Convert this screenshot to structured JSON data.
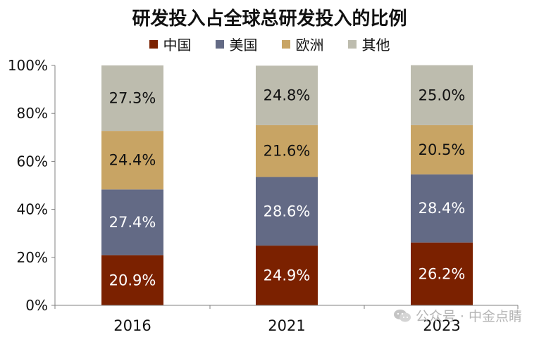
{
  "chart_data": {
    "type": "bar",
    "stacked": true,
    "title": "研发投入占全球总研发投入的比例",
    "categories": [
      "2016",
      "2021",
      "2023"
    ],
    "series": [
      {
        "name": "中国",
        "color": "#7B2100",
        "values": [
          20.9,
          24.9,
          26.2
        ],
        "labels": [
          "20.9%",
          "24.9%",
          "26.2%"
        ]
      },
      {
        "name": "美国",
        "color": "#636A85",
        "values": [
          27.4,
          28.6,
          28.4
        ],
        "labels": [
          "27.4%",
          "28.6%",
          "28.4%"
        ]
      },
      {
        "name": "欧洲",
        "color": "#C8A464",
        "values": [
          24.4,
          21.6,
          20.5
        ],
        "labels": [
          "24.4%",
          "21.6%",
          "20.5%"
        ]
      },
      {
        "name": "其他",
        "color": "#BDBCAE",
        "values": [
          27.3,
          24.8,
          25.0
        ],
        "labels": [
          "27.3%",
          "24.8%",
          "25.0%"
        ]
      }
    ],
    "ylim": [
      0,
      100
    ],
    "yticks": [
      "0%",
      "20%",
      "40%",
      "60%",
      "80%",
      "100%"
    ],
    "xlabel": "",
    "ylabel": "",
    "legend_position": "top",
    "grid": false
  },
  "watermark": {
    "text": "公众号 · 中金点睛",
    "icon": "wechat-icon"
  }
}
